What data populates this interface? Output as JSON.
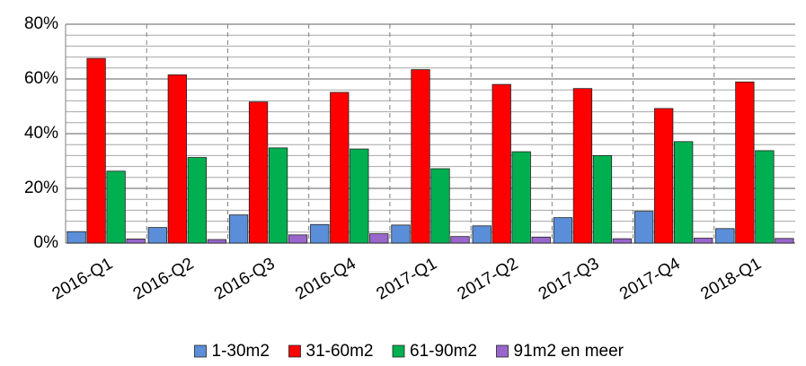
{
  "chart_data": {
    "type": "bar",
    "categories": [
      "2016-Q1",
      "2016-Q2",
      "2016-Q3",
      "2016-Q4",
      "2017-Q1",
      "2017-Q2",
      "2017-Q3",
      "2017-Q4",
      "2018-Q1"
    ],
    "series": [
      {
        "name": "1-30m2",
        "color": "#5b8ed8",
        "values": [
          4.2,
          5.7,
          10.3,
          6.8,
          6.6,
          6.3,
          9.3,
          11.6,
          5.3
        ]
      },
      {
        "name": "31-60m2",
        "color": "#ff0000",
        "values": [
          67.5,
          61.5,
          51.6,
          55.1,
          63.4,
          58.0,
          56.5,
          49.2,
          58.9
        ]
      },
      {
        "name": "61-90m2",
        "color": "#00b050",
        "values": [
          26.3,
          31.3,
          34.8,
          34.4,
          27.2,
          33.4,
          32.0,
          37.1,
          33.8
        ]
      },
      {
        "name": "91m2 en meer",
        "color": "#9966cc",
        "values": [
          1.5,
          1.3,
          3.0,
          3.4,
          2.4,
          2.2,
          1.6,
          1.8,
          1.7
        ]
      }
    ],
    "ylim": [
      0,
      80
    ],
    "yticks": [
      {
        "value": 0,
        "label": "0%"
      },
      {
        "value": 20,
        "label": "20%"
      },
      {
        "value": 40,
        "label": "40%"
      },
      {
        "value": 60,
        "label": "60%"
      },
      {
        "value": 80,
        "label": "80%"
      }
    ],
    "yminorticks": [
      4,
      8,
      12,
      16,
      24,
      28,
      32,
      36,
      44,
      48,
      52,
      56,
      64,
      68,
      72,
      76
    ],
    "grid": true,
    "legend": "bottom"
  }
}
